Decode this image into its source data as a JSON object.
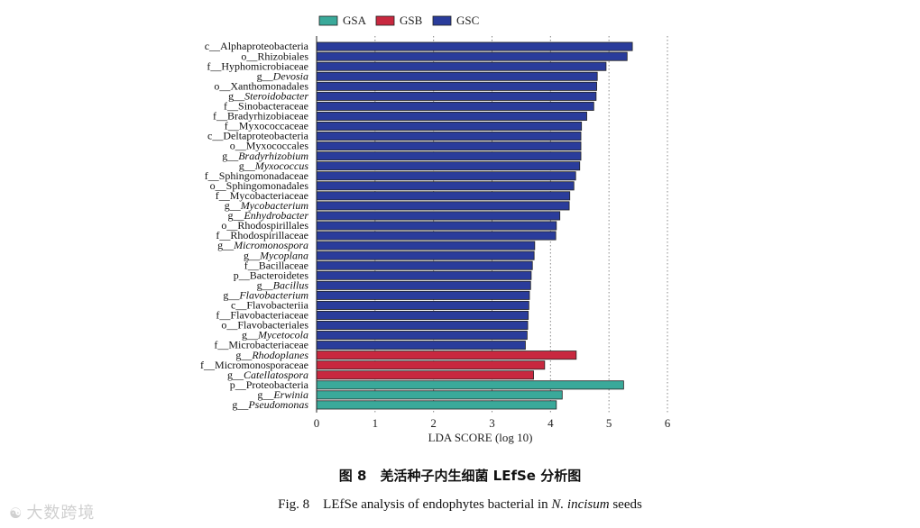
{
  "chart_data": {
    "type": "bar",
    "orientation": "horizontal",
    "xlabel": "LDA SCORE (log 10)",
    "xlim": [
      0,
      6
    ],
    "xticks": [
      0,
      1,
      2,
      3,
      4,
      5,
      6
    ],
    "grid": "vertical dotted",
    "legend_position": "top",
    "legend": [
      {
        "name": "GSA",
        "color": "#3aa99a"
      },
      {
        "name": "GSB",
        "color": "#c8283f"
      },
      {
        "name": "GSC",
        "color": "#2a3c9b"
      }
    ],
    "bars": [
      {
        "prefix": "c__",
        "name": "Alphaproteobacteria",
        "italic": false,
        "group": "GSC",
        "value": 5.4
      },
      {
        "prefix": "o__",
        "name": "Rhizobiales",
        "italic": false,
        "group": "GSC",
        "value": 5.31
      },
      {
        "prefix": "f__",
        "name": "Hyphomicrobiaceae",
        "italic": false,
        "group": "GSC",
        "value": 4.95
      },
      {
        "prefix": "g__",
        "name": "Devosia",
        "italic": true,
        "group": "GSC",
        "value": 4.8
      },
      {
        "prefix": "o__",
        "name": "Xanthomonadales",
        "italic": false,
        "group": "GSC",
        "value": 4.79
      },
      {
        "prefix": "g__",
        "name": "Steroidobacter",
        "italic": true,
        "group": "GSC",
        "value": 4.78
      },
      {
        "prefix": "f__",
        "name": "Sinobacteraceae",
        "italic": false,
        "group": "GSC",
        "value": 4.74
      },
      {
        "prefix": "f__",
        "name": "Bradyrhizobiaceae",
        "italic": false,
        "group": "GSC",
        "value": 4.62
      },
      {
        "prefix": "f__",
        "name": "Myxococcaceae",
        "italic": false,
        "group": "GSC",
        "value": 4.53
      },
      {
        "prefix": "c__",
        "name": "Deltaproteobacteria",
        "italic": false,
        "group": "GSC",
        "value": 4.52
      },
      {
        "prefix": "o__",
        "name": "Myxococcales",
        "italic": false,
        "group": "GSC",
        "value": 4.52
      },
      {
        "prefix": "g__",
        "name": "Bradyrhizobium",
        "italic": true,
        "group": "GSC",
        "value": 4.52
      },
      {
        "prefix": "g__",
        "name": "Myxococcus",
        "italic": true,
        "group": "GSC",
        "value": 4.5
      },
      {
        "prefix": "f__",
        "name": "Sphingomonadaceae",
        "italic": false,
        "group": "GSC",
        "value": 4.43
      },
      {
        "prefix": "o__",
        "name": "Sphingomonadales",
        "italic": false,
        "group": "GSC",
        "value": 4.4
      },
      {
        "prefix": "f__",
        "name": "Mycobacteriaceae",
        "italic": false,
        "group": "GSC",
        "value": 4.33
      },
      {
        "prefix": "g__",
        "name": "Mycobacterium",
        "italic": true,
        "group": "GSC",
        "value": 4.32
      },
      {
        "prefix": "g__",
        "name": "Enhydrobacter",
        "italic": true,
        "group": "GSC",
        "value": 4.16
      },
      {
        "prefix": "o__",
        "name": "Rhodospirillales",
        "italic": false,
        "group": "GSC",
        "value": 4.1
      },
      {
        "prefix": "f__",
        "name": "Rhodospirillaceae",
        "italic": false,
        "group": "GSC",
        "value": 4.09
      },
      {
        "prefix": "g__",
        "name": "Micromonospora",
        "italic": true,
        "group": "GSC",
        "value": 3.73
      },
      {
        "prefix": "g__",
        "name": "Mycoplana",
        "italic": true,
        "group": "GSC",
        "value": 3.72
      },
      {
        "prefix": "f__",
        "name": "Bacillaceae",
        "italic": false,
        "group": "GSC",
        "value": 3.69
      },
      {
        "prefix": "p__",
        "name": "Bacteroidetes",
        "italic": false,
        "group": "GSC",
        "value": 3.67
      },
      {
        "prefix": "g__",
        "name": "Bacillus",
        "italic": true,
        "group": "GSC",
        "value": 3.66
      },
      {
        "prefix": "g__",
        "name": "Flavobacterium",
        "italic": true,
        "group": "GSC",
        "value": 3.64
      },
      {
        "prefix": "c__",
        "name": "Flavobacteriia",
        "italic": false,
        "group": "GSC",
        "value": 3.63
      },
      {
        "prefix": "f__",
        "name": "Flavobacteriaceae",
        "italic": false,
        "group": "GSC",
        "value": 3.62
      },
      {
        "prefix": "o__",
        "name": "Flavobacteriales",
        "italic": false,
        "group": "GSC",
        "value": 3.61
      },
      {
        "prefix": "g__",
        "name": "Mycetocola",
        "italic": true,
        "group": "GSC",
        "value": 3.6
      },
      {
        "prefix": "f__",
        "name": "Microbacteriaceae",
        "italic": false,
        "group": "GSC",
        "value": 3.57
      },
      {
        "prefix": "g__",
        "name": "Rhodoplanes",
        "italic": true,
        "group": "GSB",
        "value": 4.44
      },
      {
        "prefix": "f__",
        "name": "Micromonosporaceae",
        "italic": false,
        "group": "GSB",
        "value": 3.9
      },
      {
        "prefix": "g__",
        "name": "Catellatospora",
        "italic": true,
        "group": "GSB",
        "value": 3.71
      },
      {
        "prefix": "p__",
        "name": "Proteobacteria",
        "italic": false,
        "group": "GSA",
        "value": 5.25
      },
      {
        "prefix": "g__",
        "name": "Erwinia",
        "italic": true,
        "group": "GSA",
        "value": 4.2
      },
      {
        "prefix": "g__",
        "name": "Pseudomonas",
        "italic": true,
        "group": "GSA",
        "value": 4.1
      }
    ]
  },
  "caption": {
    "cn": "图 8　羌活种子内生细菌 LEfSe 分析图",
    "en_prefix": "Fig. 8　LEfSe analysis of endophytes bacterial in ",
    "en_species": "N. incisum",
    "en_suffix": " seeds"
  },
  "watermark": {
    "icon": "watermark-logo-icon",
    "text": "大数跨境"
  }
}
